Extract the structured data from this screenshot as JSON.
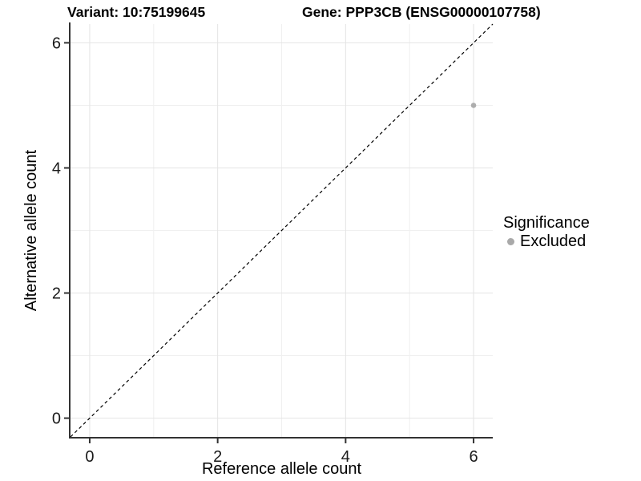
{
  "chart_data": {
    "type": "scatter",
    "title_left": "Variant: 10:75199645",
    "title_right": "Gene: PPP3CB (ENSG00000107758)",
    "xlabel": "Reference allele count",
    "ylabel": "Alternative allele count",
    "xlim": [
      -0.3,
      6.3
    ],
    "ylim": [
      -0.3,
      6.3
    ],
    "xticks": [
      0,
      2,
      4,
      6
    ],
    "yticks": [
      0,
      2,
      4,
      6
    ],
    "x_minor_gridlines": [
      1,
      3,
      5
    ],
    "y_minor_gridlines": [
      1,
      3,
      5
    ],
    "grid": "on",
    "points": [
      {
        "x": 6,
        "y": 5,
        "series": "Excluded",
        "color": "#adadad"
      }
    ],
    "reference_line": {
      "type": "identity",
      "slope": 1,
      "intercept": 0,
      "style": "dashed",
      "color": "#000000"
    },
    "legend": {
      "title": "Significance",
      "position": "right",
      "items": [
        {
          "label": "Excluded",
          "color": "#a9a9a9",
          "marker": "circle"
        }
      ]
    }
  }
}
